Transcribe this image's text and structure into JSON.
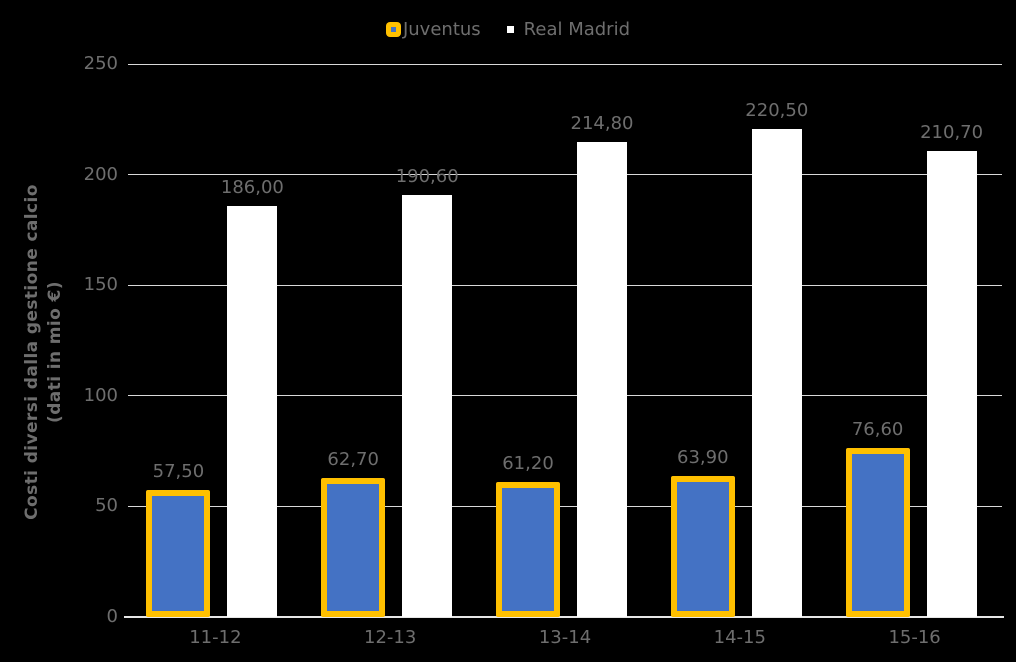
{
  "chart_data": {
    "type": "bar",
    "title": "",
    "categories": [
      "11-12",
      "12-13",
      "13-14",
      "14-15",
      "15-16"
    ],
    "series": [
      {
        "name": "Juventus",
        "values": [
          57.5,
          62.7,
          61.2,
          63.9,
          76.6
        ],
        "value_labels": [
          "57,50",
          "62,70",
          "61,20",
          "63,90",
          "76,60"
        ],
        "fill_color": "#4472C4",
        "border_color": "#FFC000"
      },
      {
        "name": "Real Madrid",
        "values": [
          186.0,
          190.6,
          214.8,
          220.5,
          210.7
        ],
        "value_labels": [
          "186,00",
          "190,60",
          "214,80",
          "220,50",
          "210,70"
        ],
        "fill_color": "#FFFFFF",
        "border_color": null
      }
    ],
    "ylabel_lines": [
      "Costi diversi dalla gestione calcio",
      "(dati in mio €)"
    ],
    "xlabel": "",
    "ylim": [
      0,
      250
    ],
    "yticks": [
      0,
      50,
      100,
      150,
      200,
      250
    ],
    "ytick_labels": [
      "0",
      "50",
      "100",
      "150",
      "200",
      "250"
    ],
    "grid": true,
    "legend_position": "top",
    "colors": {
      "background": "#000000",
      "text": "#6e6e6e",
      "gridline": "#d9d9d9",
      "axis_line": "#e6e6e6",
      "juventus_fill": "#4472C4",
      "juventus_border": "#FFC000",
      "real_madrid_fill": "#FFFFFF"
    }
  }
}
